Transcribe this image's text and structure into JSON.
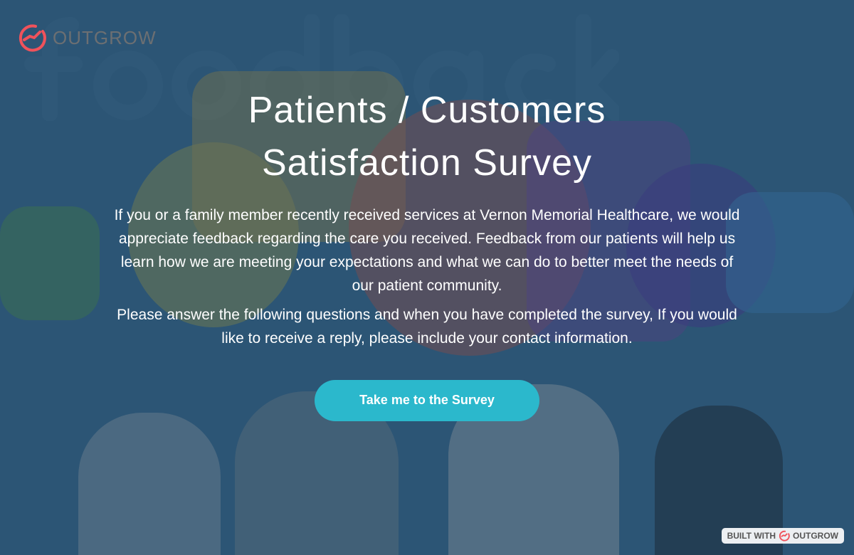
{
  "brand": {
    "name": "OUTGROW",
    "accent": "#f0525b"
  },
  "background": {
    "watermark": "feedback"
  },
  "hero": {
    "title_line1": "Patients / Customers",
    "title_line2": "Satisfaction Survey",
    "paragraph1": "If you or a family member recently received services at Vernon Memorial Healthcare, we would appreciate feedback regarding the care you received. Feedback from our patients will help us learn how we are meeting your expectations and what we can do to better meet the needs of our patient community.",
    "paragraph2": "Please answer the following questions and when you have completed the survey, If you would like to receive a reply, please include your contact information.",
    "cta_label": "Take me to the Survey",
    "cta_color": "#2bb8cc"
  },
  "footer": {
    "built_with": "BUILT WITH",
    "brand": "OUTGROW"
  }
}
